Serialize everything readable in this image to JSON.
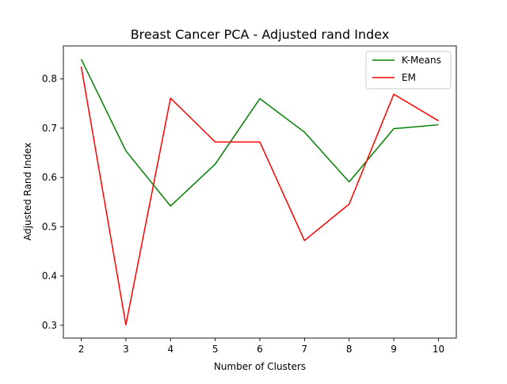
{
  "chart_data": {
    "type": "line",
    "title": "Breast Cancer PCA - Adjusted rand Index",
    "xlabel": "Number of Clusters",
    "ylabel": "Adjusted Rand Index",
    "x": [
      2,
      3,
      4,
      5,
      6,
      7,
      8,
      9,
      10
    ],
    "xlim": [
      1.6,
      10.4
    ],
    "ylim": [
      0.274,
      0.867
    ],
    "xticks": [
      2,
      3,
      4,
      5,
      6,
      7,
      8,
      9,
      10
    ],
    "yticks": [
      0.3,
      0.4,
      0.5,
      0.6,
      0.7,
      0.8
    ],
    "ytick_labels": [
      "0.3",
      "0.4",
      "0.5",
      "0.6",
      "0.7",
      "0.8"
    ],
    "grid": false,
    "legend_position": "top-right",
    "series": [
      {
        "name": "K-Means",
        "color": "#008000",
        "values": [
          0.84,
          0.654,
          0.542,
          0.627,
          0.76,
          0.692,
          0.591,
          0.699,
          0.707
        ]
      },
      {
        "name": "EM",
        "color": "#ff0000",
        "values": [
          0.825,
          0.301,
          0.761,
          0.672,
          0.672,
          0.472,
          0.546,
          0.769,
          0.715
        ]
      }
    ]
  }
}
